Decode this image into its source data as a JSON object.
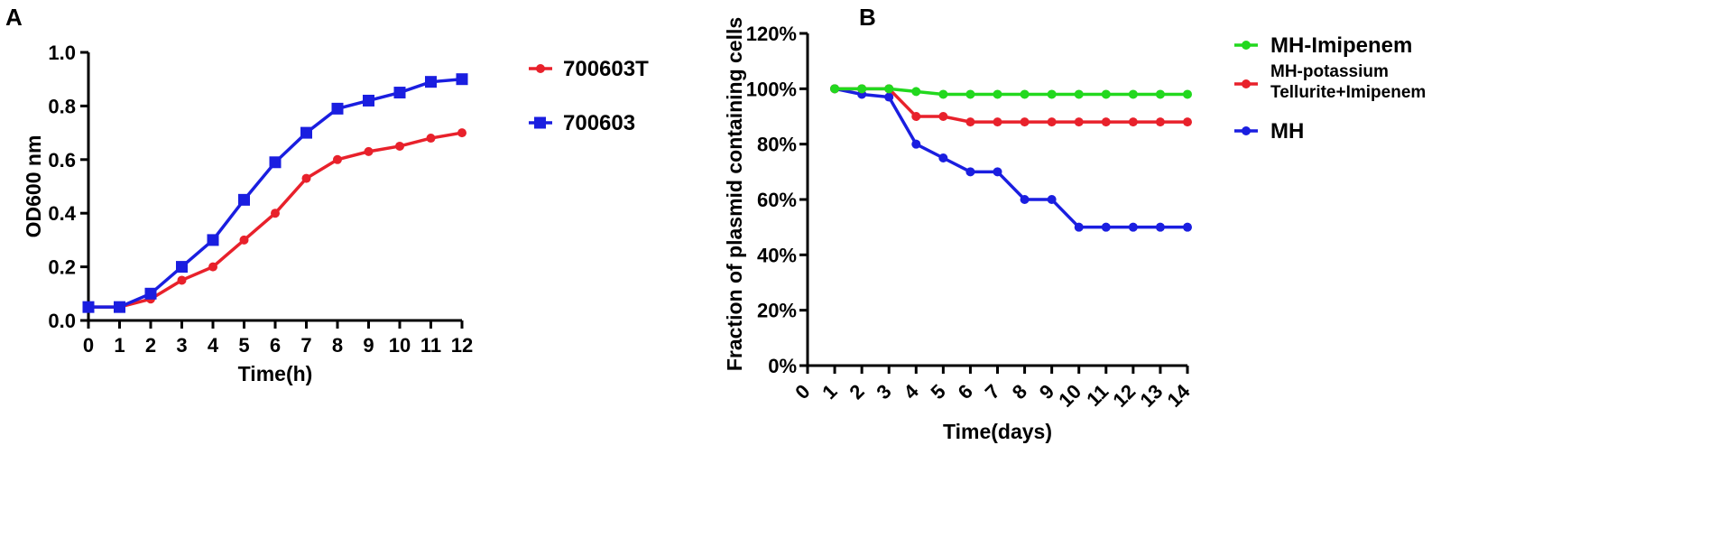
{
  "chart_data": [
    {
      "panel": "A",
      "type": "line",
      "title": "",
      "xlabel": "Time(h)",
      "ylabel": "OD600 nm",
      "x": [
        0,
        1,
        2,
        3,
        4,
        5,
        6,
        7,
        8,
        9,
        10,
        11,
        12
      ],
      "xlim": [
        0,
        12
      ],
      "ylim": [
        0,
        1.0
      ],
      "xticks": [
        "0",
        "1",
        "2",
        "3",
        "4",
        "5",
        "6",
        "7",
        "8",
        "9",
        "10",
        "11",
        "12"
      ],
      "yticks": [
        "0.0",
        "0.2",
        "0.4",
        "0.6",
        "0.8",
        "1.0"
      ],
      "legend_position": "right",
      "series": [
        {
          "name": "700603T",
          "color": "#e8212b",
          "marker": "circle",
          "values": [
            0.05,
            0.05,
            0.08,
            0.15,
            0.2,
            0.3,
            0.4,
            0.53,
            0.6,
            0.63,
            0.65,
            0.68,
            0.7
          ]
        },
        {
          "name": "700603",
          "color": "#1a1ee0",
          "marker": "square",
          "values": [
            0.05,
            0.05,
            0.1,
            0.2,
            0.3,
            0.45,
            0.59,
            0.7,
            0.79,
            0.82,
            0.85,
            0.89,
            0.9
          ]
        }
      ]
    },
    {
      "panel": "B",
      "type": "line",
      "title": "",
      "xlabel": "Time(days)",
      "ylabel": "Fraction of plasmid containing cells",
      "x": [
        1,
        2,
        3,
        4,
        5,
        6,
        7,
        8,
        9,
        10,
        11,
        12,
        13,
        14
      ],
      "xlim": [
        0,
        14
      ],
      "ylim": [
        0,
        120
      ],
      "xticks": [
        "0",
        "1",
        "2",
        "3",
        "4",
        "5",
        "6",
        "7",
        "8",
        "9",
        "10",
        "11",
        "12",
        "13",
        "14"
      ],
      "yticks": [
        "0%",
        "20%",
        "40%",
        "60%",
        "80%",
        "100%",
        "120%"
      ],
      "legend_position": "right",
      "series": [
        {
          "name": "MH-Imipenem",
          "color": "#22d81e",
          "marker": "circle",
          "values": [
            100,
            100,
            100,
            99,
            98,
            98,
            98,
            98,
            98,
            98,
            98,
            98,
            98,
            98
          ]
        },
        {
          "name": "MH-potassium Tellurite+Imipenem",
          "name_lines": [
            "MH-potassium",
            "Tellurite+Imipenem"
          ],
          "color": "#e8212b",
          "marker": "circle",
          "values": [
            100,
            100,
            100,
            90,
            90,
            88,
            88,
            88,
            88,
            88,
            88,
            88,
            88,
            88
          ]
        },
        {
          "name": "MH",
          "color": "#1a1ee0",
          "marker": "circle",
          "values": [
            100,
            98,
            97,
            80,
            75,
            70,
            70,
            60,
            60,
            50,
            50,
            50,
            50,
            50
          ]
        }
      ]
    }
  ]
}
